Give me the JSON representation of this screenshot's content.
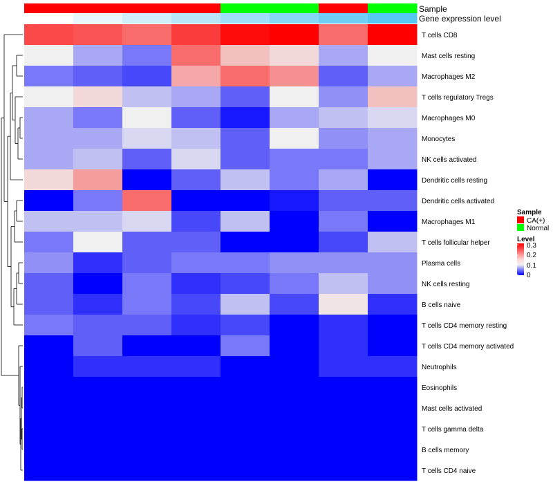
{
  "chart_data": {
    "type": "heatmap",
    "title": "",
    "rows": [
      "T cells CD8",
      "Mast cells resting",
      "Macrophages M2",
      "T cells regulatory  Tregs",
      "Macrophages M0",
      "Monocytes",
      "NK cells activated",
      "Dendritic cells resting",
      "Dendritic cells activated",
      "Macrophages M1",
      "T cells follicular helper",
      "Plasma cells",
      "NK cells resting",
      "B cells naive",
      "T cells CD4 memory resting",
      "T cells CD4 memory activated",
      "Neutrophils",
      "Eosinophils",
      "Mast cells activated",
      "T cells gamma delta",
      "B cells memory",
      "T cells CD4 naive"
    ],
    "column_annotations": [
      {
        "name": "Sample",
        "values": [
          "CA(+)",
          "CA(+)",
          "CA(+)",
          "CA(+)",
          "Normal",
          "Normal",
          "CA(+)",
          "Normal"
        ]
      },
      {
        "name": "Gene expression level",
        "values": [
          0.0,
          0.1,
          0.2,
          0.3,
          0.4,
          0.5,
          0.6,
          0.7
        ]
      }
    ],
    "values": [
      [
        0.24,
        0.23,
        0.21,
        0.25,
        0.29,
        0.3,
        0.21,
        0.3
      ],
      [
        0.1,
        0.07,
        0.05,
        0.21,
        0.14,
        0.12,
        0.07,
        0.1
      ],
      [
        0.05,
        0.04,
        0.03,
        0.16,
        0.21,
        0.18,
        0.04,
        0.07
      ],
      [
        0.1,
        0.12,
        0.08,
        0.07,
        0.04,
        0.1,
        0.06,
        0.14
      ],
      [
        0.07,
        0.05,
        0.1,
        0.04,
        0.01,
        0.07,
        0.08,
        0.09
      ],
      [
        0.07,
        0.07,
        0.09,
        0.08,
        0.04,
        0.1,
        0.06,
        0.07
      ],
      [
        0.07,
        0.08,
        0.04,
        0.09,
        0.04,
        0.05,
        0.05,
        0.07
      ],
      [
        0.12,
        0.17,
        0.0,
        0.04,
        0.08,
        0.05,
        0.07,
        0.0
      ],
      [
        0.0,
        0.05,
        0.21,
        0.0,
        0.0,
        0.01,
        0.04,
        0.04
      ],
      [
        0.08,
        0.08,
        0.09,
        0.03,
        0.08,
        0.0,
        0.05,
        0.0
      ],
      [
        0.05,
        0.1,
        0.04,
        0.04,
        0.0,
        0.0,
        0.03,
        0.08
      ],
      [
        0.06,
        0.02,
        0.04,
        0.05,
        0.05,
        0.06,
        0.06,
        0.06
      ],
      [
        0.04,
        0.0,
        0.05,
        0.02,
        0.03,
        0.05,
        0.08,
        0.06
      ],
      [
        0.04,
        0.02,
        0.05,
        0.03,
        0.08,
        0.03,
        0.11,
        0.02
      ],
      [
        0.05,
        0.04,
        0.04,
        0.02,
        0.03,
        0.0,
        0.02,
        0.0
      ],
      [
        0.0,
        0.04,
        0.0,
        0.0,
        0.05,
        0.0,
        0.02,
        0.0
      ],
      [
        0.0,
        0.02,
        0.02,
        0.02,
        0.0,
        0.0,
        0.02,
        0.02
      ],
      [
        0.0,
        0.0,
        0.0,
        0.0,
        0.0,
        0.0,
        0.0,
        0.0
      ],
      [
        0.0,
        0.0,
        0.0,
        0.0,
        0.0,
        0.0,
        0.0,
        0.0
      ],
      [
        0.0,
        0.0,
        0.0,
        0.0,
        0.0,
        0.0,
        0.0,
        0.0
      ],
      [
        0.0,
        0.0,
        0.0,
        0.0,
        0.0,
        0.0,
        0.0,
        0.0
      ],
      [
        0.0,
        0.0,
        0.0,
        0.0,
        0.0,
        0.0,
        0.0,
        0.0
      ]
    ],
    "color_scale": {
      "min": 0,
      "mid": 0.1,
      "max": 0.3,
      "low_color": "#0000ff",
      "mid_color": "#f0f0f0",
      "high_color": "#ff0000"
    },
    "dendrogram": "rows clustered; cluster tree drawn at left",
    "legend": {
      "position": "right",
      "sample": {
        "title": "Sample",
        "entries": [
          {
            "label": "CA(+)",
            "color": "#ff0000"
          },
          {
            "label": "Normal",
            "color": "#00ff00"
          }
        ]
      },
      "level": {
        "title": "Level",
        "ticks": [
          "0.3",
          "0.2",
          "0.1",
          "0"
        ]
      }
    },
    "expression_bar": {
      "low_color": "#ffffff",
      "high_color": "#56c6f2"
    }
  }
}
